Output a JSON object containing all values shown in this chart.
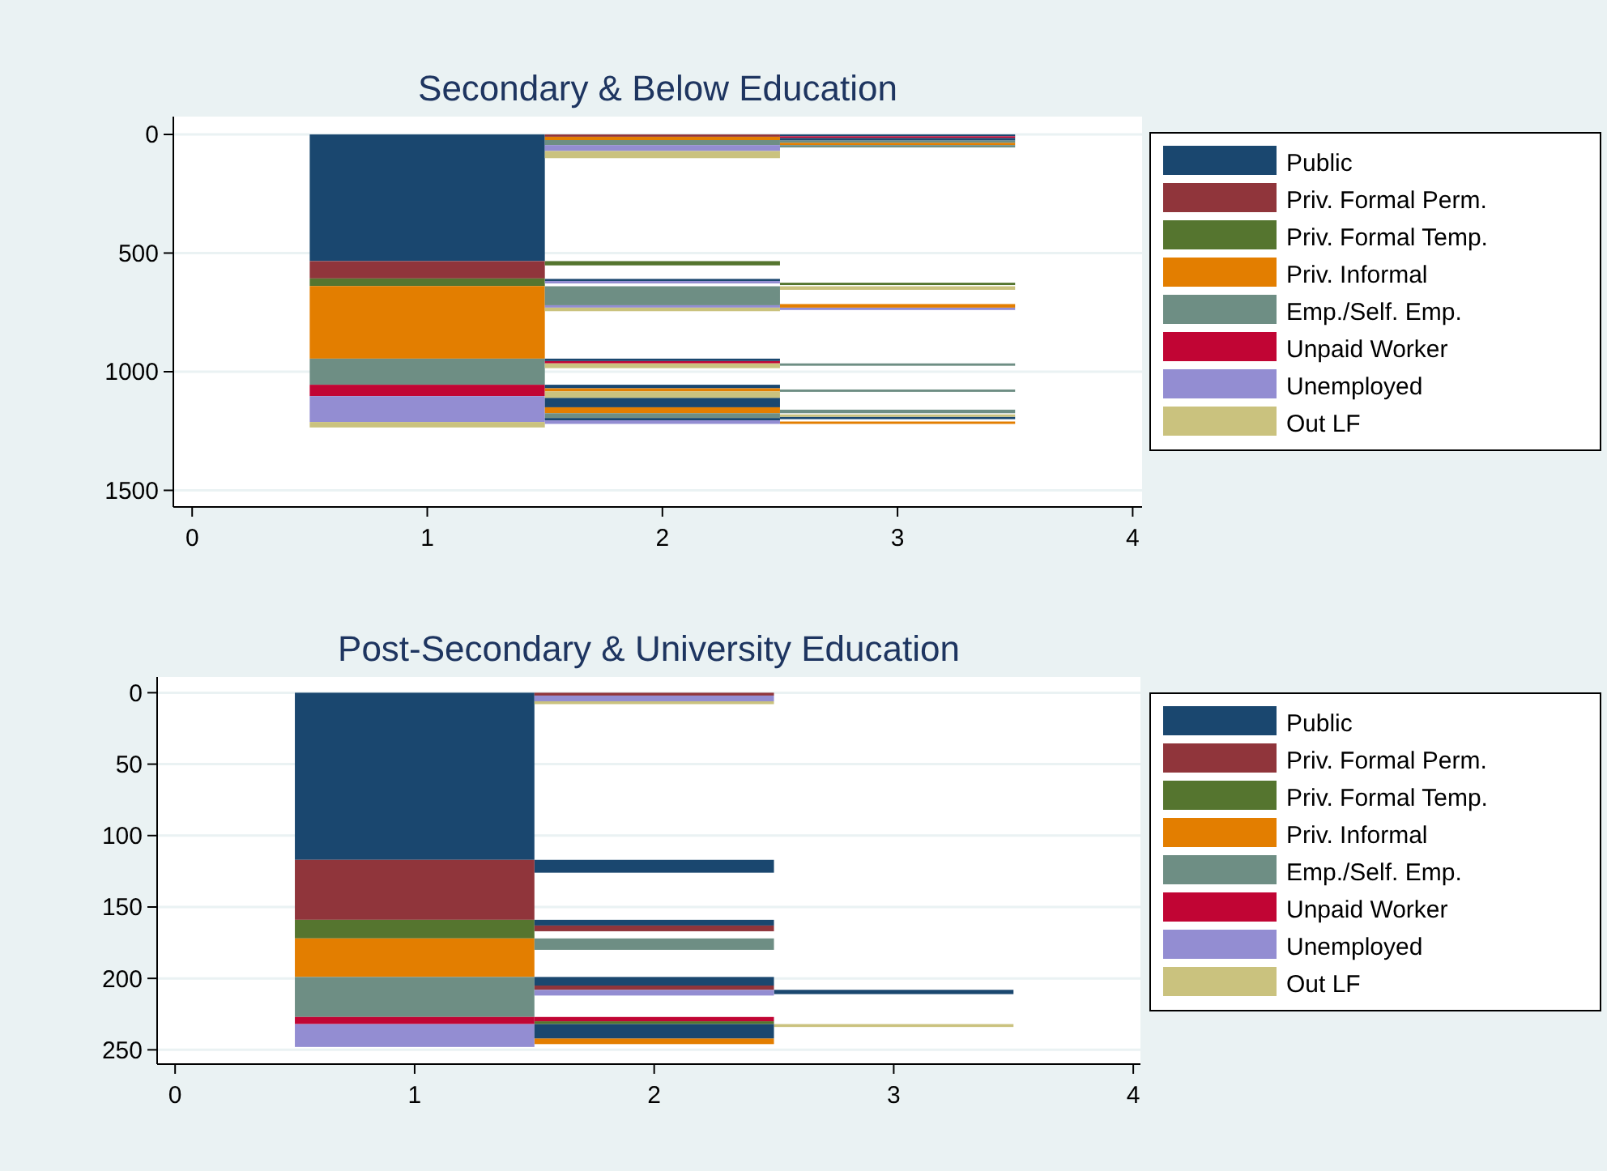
{
  "chart_data": [
    {
      "type": "bar",
      "title": "Secondary & Below Education",
      "xlim": [
        -0.08,
        4.04
      ],
      "xticks": [
        0,
        1,
        2,
        3,
        4
      ],
      "ylim": [
        1570,
        -75
      ],
      "yticks": [
        0,
        500,
        1000,
        1500
      ],
      "grid": "y",
      "legend": "right",
      "series": [
        {
          "name": "Public",
          "color": "#1a476f",
          "x": [
            1,
            2,
            3
          ],
          "base": [
            0,
            609,
            0
          ],
          "values": [
            534,
            9,
            8
          ]
        },
        {
          "name": "Priv. Formal Perm.",
          "color": "#90353b",
          "x": [
            1,
            2
          ],
          "base": [
            534,
            0
          ],
          "values": [
            73,
            10
          ]
        },
        {
          "name": "Priv. Formal Temp.",
          "color": "#55752f",
          "x": [
            1,
            2,
            3
          ],
          "base": [
            607,
            534,
            625
          ],
          "values": [
            32,
            18,
            10
          ]
        },
        {
          "name": "Priv. Informal",
          "color": "#e37e00",
          "x": [
            1,
            2,
            3
          ],
          "base": [
            639,
            10,
            35
          ],
          "values": [
            306,
            14,
            10
          ]
        },
        {
          "name": "Emp./Self. Emp.",
          "color": "#6e8e84",
          "x": [
            1,
            2,
            3
          ],
          "base": [
            945,
            24,
            25
          ],
          "values": [
            110,
            21,
            10
          ]
        },
        {
          "name": "Unpaid Worker",
          "color": "#c10534",
          "x": [
            1,
            2,
            3
          ],
          "base": [
            1055,
            955,
            8
          ],
          "values": [
            48,
            10,
            7
          ]
        },
        {
          "name": "Unemployed",
          "color": "#938dd2",
          "x": [
            1,
            2,
            3
          ],
          "base": [
            1103,
            45,
            730
          ],
          "values": [
            109,
            25,
            10
          ]
        },
        {
          "name": "Out LF",
          "color": "#cac27e",
          "x": [
            1,
            2,
            3
          ],
          "base": [
            1212,
            70,
            640
          ],
          "values": [
            23,
            30,
            15
          ]
        },
        {
          "color": "#1a476f",
          "x": [
            2,
            3
          ],
          "base": [
            945,
            15
          ],
          "values": [
            10,
            10
          ]
        },
        {
          "color": "#1a476f",
          "x": [
            2,
            3
          ],
          "base": [
            1055,
            1190
          ],
          "values": [
            15,
            10
          ]
        },
        {
          "color": "#1a476f",
          "x": [
            2
          ],
          "base": [
            1110
          ],
          "values": [
            40
          ]
        },
        {
          "color": "#1a476f",
          "x": [
            2
          ],
          "base": [
            1195
          ],
          "values": [
            10
          ]
        },
        {
          "color": "#e37e00",
          "x": [
            2,
            3
          ],
          "base": [
            1070,
            715
          ],
          "values": [
            13,
            15
          ]
        },
        {
          "color": "#e37e00",
          "x": [
            2,
            3
          ],
          "base": [
            1150,
            1210
          ],
          "values": [
            25,
            10
          ]
        },
        {
          "color": "#6e8e84",
          "x": [
            2,
            3
          ],
          "base": [
            640,
            45
          ],
          "values": [
            80,
            10
          ]
        },
        {
          "color": "#6e8e84",
          "x": [
            2,
            3
          ],
          "base": [
            1175,
            965
          ],
          "values": [
            20,
            10
          ]
        },
        {
          "color": "#6e8e84",
          "x": [
            3
          ],
          "base": [
            1075
          ],
          "values": [
            10
          ]
        },
        {
          "color": "#6e8e84",
          "x": [
            3
          ],
          "base": [
            1160
          ],
          "values": [
            15
          ]
        },
        {
          "color": "#938dd2",
          "x": [
            2
          ],
          "base": [
            618
          ],
          "values": [
            10
          ]
        },
        {
          "color": "#938dd2",
          "x": [
            2
          ],
          "base": [
            720
          ],
          "values": [
            10
          ]
        },
        {
          "color": "#938dd2",
          "x": [
            2
          ],
          "base": [
            1205
          ],
          "values": [
            15
          ]
        },
        {
          "color": "#cac27e",
          "x": [
            2,
            3
          ],
          "base": [
            730,
            1180
          ],
          "values": [
            15,
            10
          ]
        },
        {
          "color": "#cac27e",
          "x": [
            2
          ],
          "base": [
            965
          ],
          "values": [
            20
          ]
        },
        {
          "color": "#cac27e",
          "x": [
            2
          ],
          "base": [
            1083
          ],
          "values": [
            27
          ]
        }
      ]
    },
    {
      "type": "bar",
      "title": "Post-Secondary & University Education",
      "xlim": [
        -0.075,
        4.03
      ],
      "xticks": [
        0,
        1,
        2,
        3,
        4
      ],
      "ylim": [
        260,
        -11
      ],
      "yticks": [
        0,
        50,
        100,
        150,
        200,
        250
      ],
      "grid": "y",
      "legend": "right",
      "series": [
        {
          "name": "Public",
          "color": "#1a476f",
          "x": [
            1,
            2,
            3
          ],
          "base": [
            0,
            117,
            208
          ],
          "values": [
            117,
            9,
            3
          ]
        },
        {
          "name": "Priv. Formal Perm.",
          "color": "#90353b",
          "x": [
            1,
            2
          ],
          "base": [
            117,
            0
          ],
          "values": [
            42,
            2
          ]
        },
        {
          "name": "Priv. Formal Temp.",
          "color": "#55752f",
          "x": [
            1,
            2
          ],
          "base": [
            159,
            230
          ],
          "values": [
            13,
            2
          ]
        },
        {
          "name": "Priv. Informal",
          "color": "#e37e00",
          "x": [
            1,
            2
          ],
          "base": [
            172,
            242
          ],
          "values": [
            27,
            4
          ]
        },
        {
          "name": "Emp./Self. Emp.",
          "color": "#6e8e84",
          "x": [
            1,
            2
          ],
          "base": [
            199,
            172
          ],
          "values": [
            28,
            8
          ]
        },
        {
          "name": "Unpaid Worker",
          "color": "#c10534",
          "x": [
            1,
            2
          ],
          "base": [
            227,
            227
          ],
          "values": [
            5,
            3
          ]
        },
        {
          "name": "Unemployed",
          "color": "#938dd2",
          "x": [
            1,
            2
          ],
          "base": [
            232,
            2
          ],
          "values": [
            16,
            4
          ]
        },
        {
          "name": "Out LF",
          "color": "#cac27e",
          "x": [
            2,
            3
          ],
          "base": [
            6,
            232
          ],
          "values": [
            2,
            2
          ]
        },
        {
          "color": "#1a476f",
          "x": [
            2
          ],
          "base": [
            159
          ],
          "values": [
            4
          ]
        },
        {
          "color": "#1a476f",
          "x": [
            2
          ],
          "base": [
            199
          ],
          "values": [
            6
          ]
        },
        {
          "color": "#1a476f",
          "x": [
            2
          ],
          "base": [
            232
          ],
          "values": [
            10
          ]
        },
        {
          "color": "#90353b",
          "x": [
            2
          ],
          "base": [
            163
          ],
          "values": [
            4
          ]
        },
        {
          "color": "#90353b",
          "x": [
            2
          ],
          "base": [
            205
          ],
          "values": [
            3
          ]
        },
        {
          "color": "#938dd2",
          "x": [
            2
          ],
          "base": [
            208
          ],
          "values": [
            4
          ]
        }
      ]
    }
  ]
}
